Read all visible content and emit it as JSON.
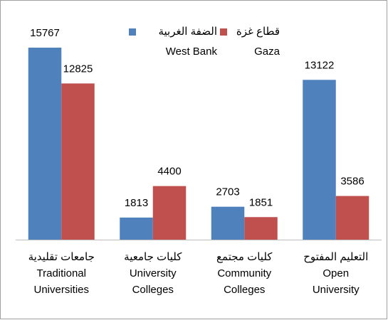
{
  "chart_data": {
    "type": "bar",
    "categories": [
      [
        "جامعات تقليدية",
        "Traditional",
        "Universities"
      ],
      [
        "كليات جامعية",
        "University",
        "Colleges"
      ],
      [
        "كليات مجتمع",
        "Community",
        "Colleges"
      ],
      [
        "التعليم المفتوح",
        "Open",
        "University"
      ]
    ],
    "series": [
      {
        "name": [
          "الضفة الغربية",
          "West Bank"
        ],
        "color": "#4f81bd",
        "values": [
          15767,
          1813,
          2703,
          13122
        ]
      },
      {
        "name": [
          "قطاع غزة",
          "Gaza"
        ],
        "color": "#c0504d",
        "values": [
          12825,
          4400,
          1851,
          3586
        ]
      }
    ],
    "ylim": [
      0,
      16000
    ]
  }
}
